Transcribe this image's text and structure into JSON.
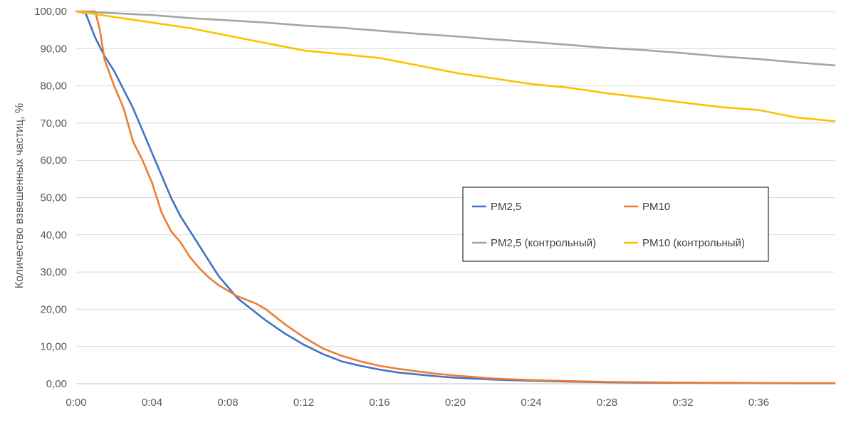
{
  "chart_data": {
    "type": "line",
    "title": "",
    "xlabel": "",
    "ylabel": "Количество взвешенных частиц, %",
    "x_unit": "time (h:mm)",
    "xlim": [
      0,
      40
    ],
    "ylim": [
      0,
      100
    ],
    "x_ticks": [
      "0:00",
      "0:04",
      "0:08",
      "0:12",
      "0:16",
      "0:20",
      "0:24",
      "0:28",
      "0:32",
      "0:36"
    ],
    "y_ticks": [
      "0,00",
      "10,00",
      "20,00",
      "30,00",
      "40,00",
      "50,00",
      "60,00",
      "70,00",
      "80,00",
      "90,00",
      "100,00"
    ],
    "grid": "horizontal",
    "legend_position": "right-center",
    "series": [
      {
        "name": "PM2,5",
        "color": "#4472C4",
        "x": [
          0,
          0.5,
          1,
          1.5,
          2,
          2.5,
          3,
          3.5,
          4,
          4.5,
          5,
          5.5,
          6,
          6.5,
          7,
          7.5,
          8,
          8.5,
          9,
          9.5,
          10,
          11,
          12,
          13,
          14,
          15,
          16,
          17,
          18,
          19,
          20,
          22,
          24,
          26,
          28,
          30,
          32,
          34,
          36,
          38,
          40
        ],
        "values": [
          100,
          99.5,
          93,
          88,
          84,
          79,
          74,
          68,
          62,
          56,
          50,
          45,
          41,
          37,
          33,
          29,
          26,
          23,
          21,
          19,
          17,
          13.5,
          10.5,
          8,
          6,
          4.8,
          3.8,
          3,
          2.5,
          2,
          1.6,
          1.1,
          0.8,
          0.55,
          0.4,
          0.3,
          0.25,
          0.2,
          0.15,
          0.1,
          0.1
        ]
      },
      {
        "name": "PM10",
        "color": "#ED7D31",
        "x": [
          0,
          0.5,
          1,
          1.25,
          1.5,
          2,
          2.5,
          3,
          3.5,
          4,
          4.5,
          5,
          5.5,
          6,
          6.5,
          7,
          7.5,
          8,
          8.5,
          9,
          9.5,
          10,
          11,
          12,
          13,
          14,
          15,
          16,
          17,
          18,
          19,
          20,
          22,
          24,
          26,
          28,
          30,
          32,
          34,
          36,
          38,
          40
        ],
        "values": [
          100,
          100,
          100,
          95,
          87,
          80,
          74,
          65,
          60,
          54,
          46,
          41,
          38,
          34,
          31,
          28.5,
          26.5,
          25,
          23.5,
          22.5,
          21.5,
          20,
          16,
          12.5,
          9.5,
          7.5,
          6,
          4.8,
          4,
          3.3,
          2.7,
          2.2,
          1.4,
          1,
          0.7,
          0.5,
          0.4,
          0.3,
          0.25,
          0.2,
          0.15,
          0.15
        ]
      },
      {
        "name": "PM2,5 (контрольный)",
        "color": "#A5A5A5",
        "x": [
          0,
          2,
          4,
          6,
          8,
          10,
          12,
          14,
          16,
          18,
          20,
          22,
          24,
          26,
          28,
          30,
          32,
          34,
          36,
          38,
          40
        ],
        "values": [
          100,
          99.5,
          99,
          98.2,
          97.6,
          97,
          96.2,
          95.6,
          94.8,
          94,
          93.3,
          92.5,
          91.8,
          91,
          90.2,
          89.6,
          88.8,
          87.9,
          87.2,
          86.3,
          85.5
        ]
      },
      {
        "name": "PM10 (контрольный)",
        "color": "#FFC000",
        "x": [
          0,
          2,
          4,
          6,
          8,
          10,
          12,
          14,
          16,
          18,
          20,
          22,
          24,
          26,
          28,
          30,
          32,
          34,
          36,
          38,
          40
        ],
        "values": [
          100,
          98.5,
          97,
          95.5,
          93.5,
          91.5,
          89.5,
          88.5,
          87.5,
          85.5,
          83.5,
          82,
          80.5,
          79.5,
          78,
          76.8,
          75.5,
          74.3,
          73.5,
          71.5,
          70.5
        ]
      }
    ]
  }
}
